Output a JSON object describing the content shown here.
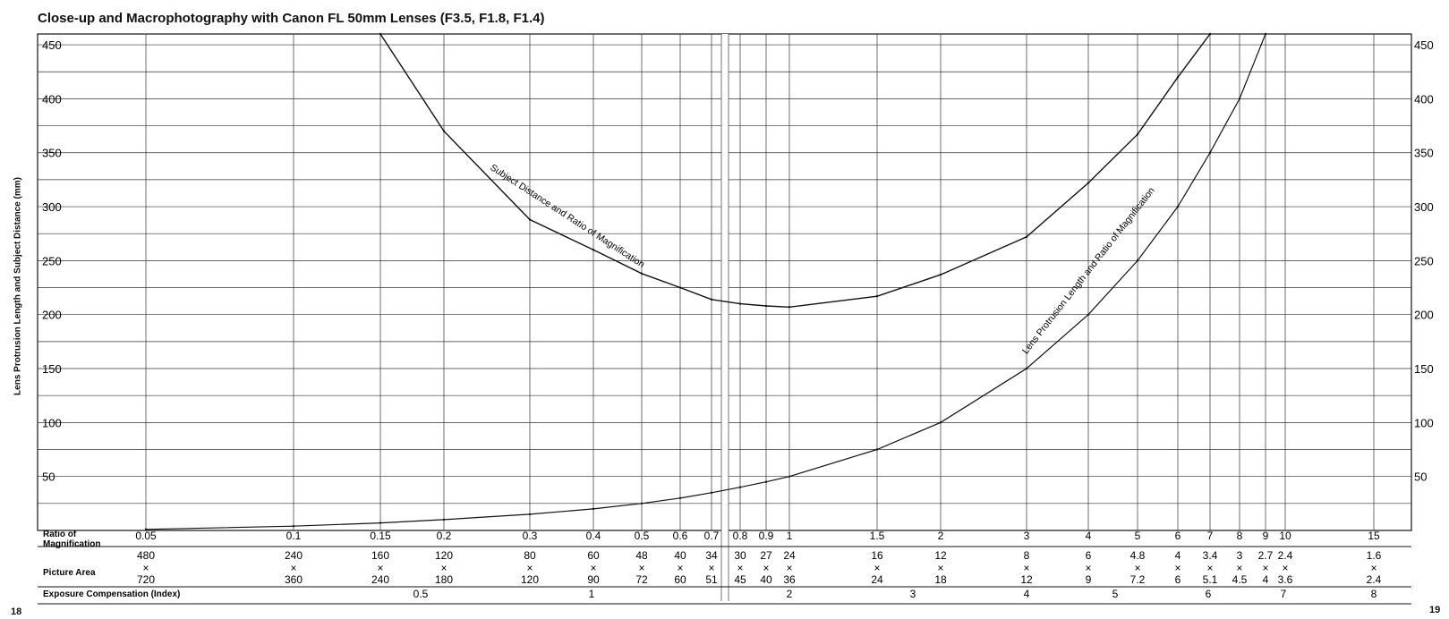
{
  "chart_data": {
    "type": "line",
    "title": "Close-up and Macrophotography with Canon FL 50mm Lenses (F3.5, F1.8, F1.4)",
    "ylabel": "Lens Protrusion Length and Subject Distance (mm)",
    "ylim": [
      0,
      460
    ],
    "y_ticks": [
      50,
      100,
      150,
      200,
      250,
      300,
      350,
      400,
      450
    ],
    "x_scale": "non-linear (split page)",
    "grid": true,
    "series": [
      {
        "name": "Subject Distance and Ratio of Magnification",
        "x": [
          0.15,
          0.2,
          0.3,
          0.4,
          0.5,
          0.6,
          0.7,
          0.8,
          0.9,
          1,
          1.5,
          2,
          3,
          4,
          5,
          6,
          7
        ],
        "y": [
          460,
          370,
          288,
          260,
          238,
          225,
          214,
          210,
          208,
          207,
          217,
          237,
          272,
          322,
          367,
          420,
          460
        ]
      },
      {
        "name": "Lens Protrusion Length and Ratio of Magnification",
        "x": [
          0.05,
          0.1,
          0.15,
          0.2,
          0.3,
          0.4,
          0.5,
          0.6,
          0.7,
          0.8,
          0.9,
          1,
          1.5,
          2,
          3,
          4,
          5,
          6,
          7,
          8,
          9
        ],
        "y": [
          1,
          4,
          7,
          10,
          15,
          20,
          25,
          30,
          35,
          40,
          45,
          50,
          75,
          100,
          150,
          200,
          250,
          300,
          350,
          400,
          460
        ]
      }
    ],
    "table": {
      "row_labels": {
        "ratio": "Ratio of Magnification",
        "area": "Picture Area",
        "exposure": "Exposure Compensation (Index)"
      },
      "columns": [
        {
          "ratio": "0.05",
          "area_top": "480",
          "area_bottom": "720"
        },
        {
          "ratio": "0.1",
          "area_top": "240",
          "area_bottom": "360"
        },
        {
          "ratio": "0.15",
          "area_top": "160",
          "area_bottom": "240"
        },
        {
          "ratio": "0.2",
          "area_top": "120",
          "area_bottom": "180"
        },
        {
          "ratio": "0.3",
          "area_top": "80",
          "area_bottom": "120"
        },
        {
          "ratio": "0.4",
          "area_top": "60",
          "area_bottom": "90"
        },
        {
          "ratio": "0.5",
          "area_top": "48",
          "area_bottom": "72"
        },
        {
          "ratio": "0.6",
          "area_top": "40",
          "area_bottom": "60"
        },
        {
          "ratio": "0.7",
          "area_top": "34",
          "area_bottom": "51"
        },
        {
          "ratio": "0.8",
          "area_top": "30",
          "area_bottom": "45"
        },
        {
          "ratio": "0.9",
          "area_top": "27",
          "area_bottom": "40"
        },
        {
          "ratio": "1",
          "area_top": "24",
          "area_bottom": "36"
        },
        {
          "ratio": "1.5",
          "area_top": "16",
          "area_bottom": "24"
        },
        {
          "ratio": "2",
          "area_top": "12",
          "area_bottom": "18"
        },
        {
          "ratio": "3",
          "area_top": "8",
          "area_bottom": "12"
        },
        {
          "ratio": "4",
          "area_top": "6",
          "area_bottom": "9"
        },
        {
          "ratio": "5",
          "area_top": "4.8",
          "area_bottom": "7.2"
        },
        {
          "ratio": "6",
          "area_top": "4",
          "area_bottom": "6"
        },
        {
          "ratio": "7",
          "area_top": "3.4",
          "area_bottom": "5.1"
        },
        {
          "ratio": "8",
          "area_top": "3",
          "area_bottom": "4.5"
        },
        {
          "ratio": "9",
          "area_top": "2.7",
          "area_bottom": "4"
        },
        {
          "ratio": "10",
          "area_top": "2.4",
          "area_bottom": "3.6"
        },
        {
          "ratio": "15",
          "area_top": "1.6",
          "area_bottom": "2.4"
        }
      ],
      "exposure_values": [
        "0.5",
        "1",
        "2",
        "3",
        "4",
        "5",
        "6",
        "7",
        "8"
      ]
    }
  },
  "page_numbers": {
    "left": "18",
    "right": "19"
  }
}
